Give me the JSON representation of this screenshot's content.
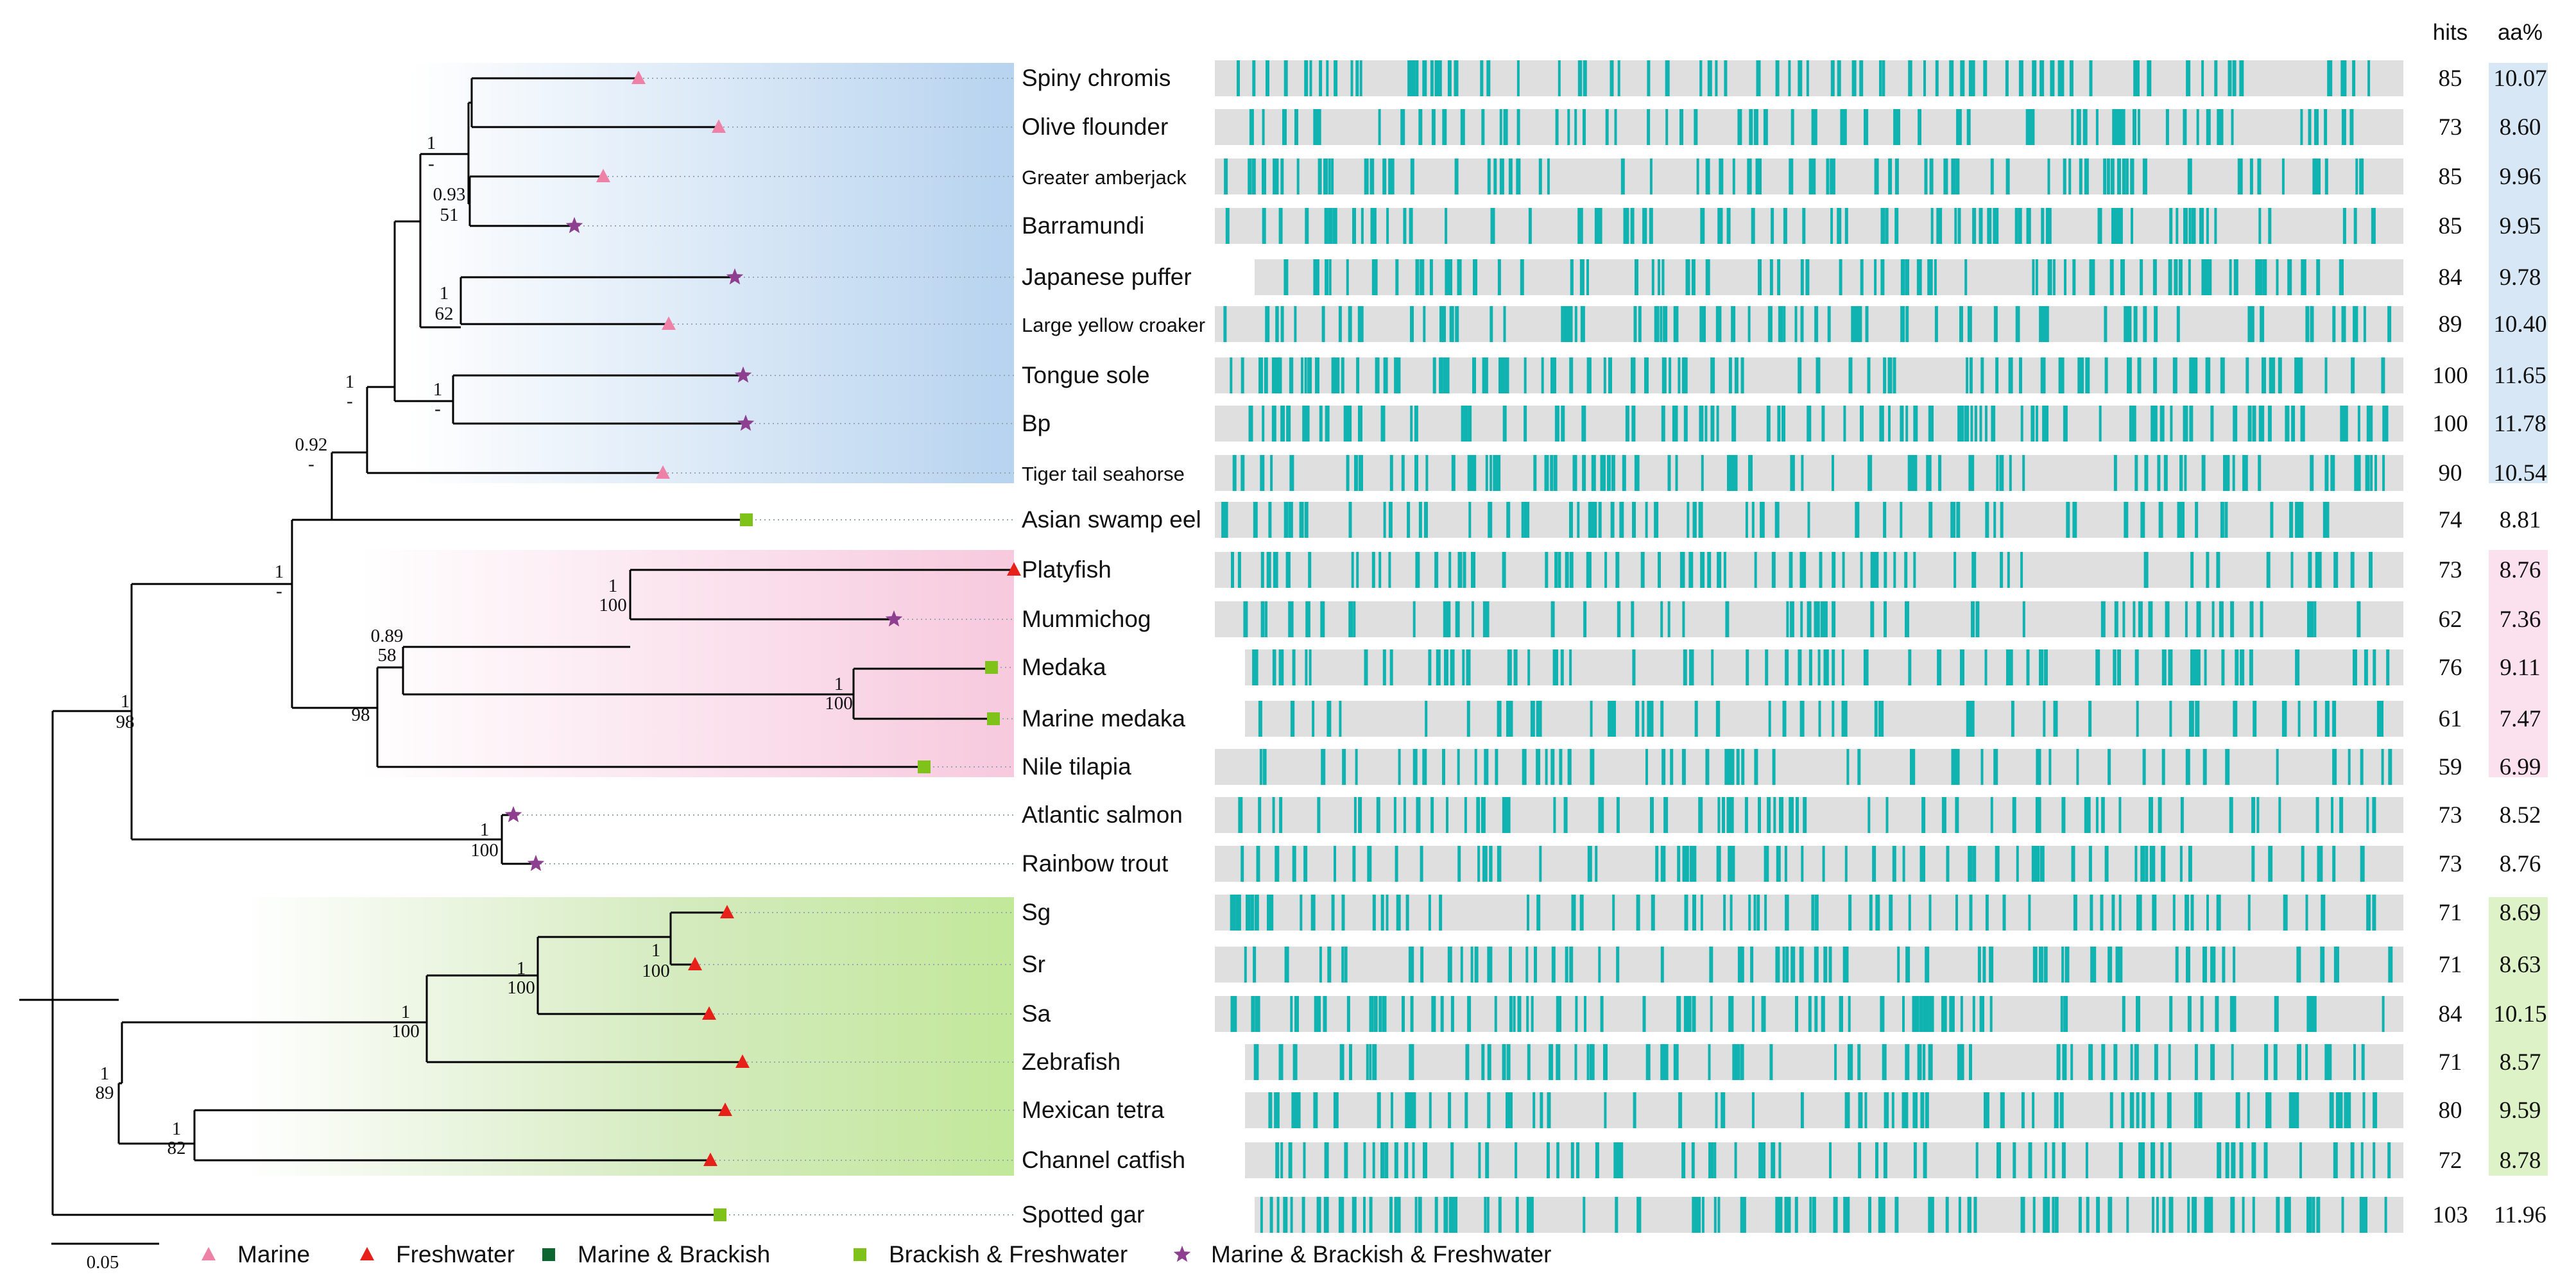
{
  "headers": {
    "hits": "hits",
    "aa": "aa%"
  },
  "colors": {
    "marine": "#ee82a6",
    "freshwater": "#e8201a",
    "marine_brackish": "#0b6630",
    "brackish_freshwater": "#7fc21a",
    "all_three": "#8e3f8f",
    "motif": "#11b3b1",
    "track": "#dfdfdf",
    "clade_blue": "#b7d3ef",
    "clade_pink": "#f7c9de",
    "clade_green": "#c2e89a"
  },
  "species": [
    {
      "name": "Spiny chromis",
      "small": false,
      "habitat": "marine",
      "hits": "85",
      "aa": "10.07",
      "group": "blue"
    },
    {
      "name": "Olive flounder",
      "small": false,
      "habitat": "marine",
      "hits": "73",
      "aa": "8.60",
      "group": "blue"
    },
    {
      "name": "Greater amberjack",
      "small": true,
      "habitat": "marine",
      "hits": "85",
      "aa": "9.96",
      "group": "blue"
    },
    {
      "name": "Barramundi",
      "small": false,
      "habitat": "all_three",
      "hits": "85",
      "aa": "9.95",
      "group": "blue"
    },
    {
      "name": "Japanese puffer",
      "small": false,
      "habitat": "all_three",
      "hits": "84",
      "aa": "9.78",
      "group": "blue"
    },
    {
      "name": "Large yellow croaker",
      "small": true,
      "habitat": "marine",
      "hits": "89",
      "aa": "10.40",
      "group": "blue"
    },
    {
      "name": "Tongue sole",
      "small": false,
      "habitat": "all_three",
      "hits": "100",
      "aa": "11.65",
      "group": "blue"
    },
    {
      "name": "Bp",
      "small": false,
      "habitat": "all_three",
      "hits": "100",
      "aa": "11.78",
      "group": "blue"
    },
    {
      "name": "Tiger tail seahorse",
      "small": true,
      "habitat": "marine",
      "hits": "90",
      "aa": "10.54",
      "group": "blue"
    },
    {
      "name": "Asian swamp eel",
      "small": false,
      "habitat": "brackish_freshwater",
      "hits": "74",
      "aa": "8.81",
      "group": "none"
    },
    {
      "name": "Platyfish",
      "small": false,
      "habitat": "freshwater",
      "hits": "73",
      "aa": "8.76",
      "group": "pink"
    },
    {
      "name": "Mummichog",
      "small": false,
      "habitat": "all_three",
      "hits": "62",
      "aa": "7.36",
      "group": "pink"
    },
    {
      "name": "Medaka",
      "small": false,
      "habitat": "brackish_freshwater",
      "hits": "76",
      "aa": "9.11",
      "group": "pink"
    },
    {
      "name": "Marine medaka",
      "small": false,
      "habitat": "brackish_freshwater",
      "hits": "61",
      "aa": "7.47",
      "group": "pink"
    },
    {
      "name": "Nile tilapia",
      "small": false,
      "habitat": "brackish_freshwater",
      "hits": "59",
      "aa": "6.99",
      "group": "pink"
    },
    {
      "name": "Atlantic salmon",
      "small": false,
      "habitat": "all_three",
      "hits": "73",
      "aa": "8.52",
      "group": "none"
    },
    {
      "name": "Rainbow trout",
      "small": false,
      "habitat": "all_three",
      "hits": "73",
      "aa": "8.76",
      "group": "none"
    },
    {
      "name": "Sg",
      "small": false,
      "habitat": "freshwater",
      "hits": "71",
      "aa": "8.69",
      "group": "green"
    },
    {
      "name": "Sr",
      "small": false,
      "habitat": "freshwater",
      "hits": "71",
      "aa": "8.63",
      "group": "green"
    },
    {
      "name": "Sa",
      "small": false,
      "habitat": "freshwater",
      "hits": "84",
      "aa": "10.15",
      "group": "green"
    },
    {
      "name": "Zebrafish",
      "small": false,
      "habitat": "freshwater",
      "hits": "71",
      "aa": "8.57",
      "group": "green"
    },
    {
      "name": "Mexican tetra",
      "small": false,
      "habitat": "freshwater",
      "hits": "80",
      "aa": "9.59",
      "group": "green"
    },
    {
      "name": "Channel catfish",
      "small": false,
      "habitat": "freshwater",
      "hits": "72",
      "aa": "8.78",
      "group": "green"
    },
    {
      "name": "Spotted gar",
      "small": false,
      "habitat": "brackish_freshwater",
      "hits": "103",
      "aa": "11.96",
      "group": "none"
    }
  ],
  "support_labels": [
    {
      "top": "1",
      "bottom": "-"
    },
    {
      "top": "0.93",
      "bottom": "51"
    },
    {
      "top": "1",
      "bottom": "62"
    },
    {
      "top": "1",
      "bottom": "-"
    },
    {
      "top": "1",
      "bottom": "-"
    },
    {
      "top": "0.92",
      "bottom": "-"
    },
    {
      "top": "1",
      "bottom": "-"
    },
    {
      "top": "1",
      "bottom": "100"
    },
    {
      "top": "1",
      "bottom": "100"
    },
    {
      "top": "0.89",
      "bottom": "58"
    },
    {
      "top": "",
      "bottom": "98"
    },
    {
      "top": "1",
      "bottom": "98"
    },
    {
      "top": "1",
      "bottom": "100"
    },
    {
      "top": "1",
      "bottom": "100"
    },
    {
      "top": "1",
      "bottom": "100"
    },
    {
      "top": "1",
      "bottom": "100"
    },
    {
      "top": "1",
      "bottom": "82"
    },
    {
      "top": "1",
      "bottom": "89"
    }
  ],
  "scale_bar": {
    "label": "0.05"
  },
  "legend": [
    {
      "key": "marine",
      "label": "Marine"
    },
    {
      "key": "freshwater",
      "label": "Freshwater"
    },
    {
      "key": "marine_brackish",
      "label": "Marine & Brackish"
    },
    {
      "key": "brackish_freshwater",
      "label": "Brackish & Freshwater"
    },
    {
      "key": "all_three",
      "label": "Marine & Brackish & Freshwater"
    }
  ]
}
